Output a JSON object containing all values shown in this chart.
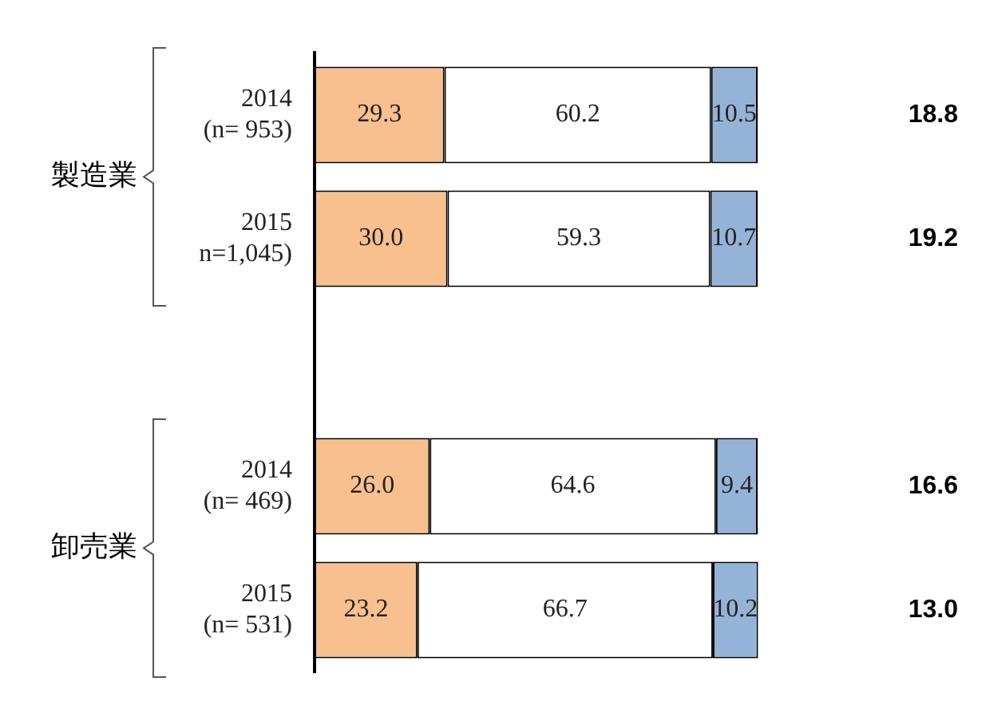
{
  "chart_data": {
    "type": "bar",
    "orientation": "horizontal",
    "stacked": true,
    "legend": false,
    "tick_labels": "y",
    "categories": [
      "2014\n(n= 953)",
      "2015\nn=1,045)",
      null,
      "2014\n(n= 469)",
      "2015\n(n= 531)"
    ],
    "series": [
      {
        "color": "#f8c08f",
        "values": [
          29.3,
          30.0,
          null,
          26.0,
          23.2
        ],
        "value_labels": [
          "29.3",
          "30.0",
          null,
          "26.0",
          "23.2"
        ]
      },
      {
        "color": "#ffffff",
        "values": [
          60.2,
          59.3,
          null,
          64.6,
          66.7
        ],
        "value_labels": [
          "60.2",
          "59.3",
          null,
          "64.6",
          "66.7"
        ]
      },
      {
        "color": "#95b3d7",
        "values": [
          10.5,
          10.7,
          null,
          9.4,
          10.2
        ],
        "value_labels": [
          "10.5",
          "10.7",
          null,
          "9.4",
          "10.2"
        ]
      }
    ],
    "annotations": [
      "製造業",
      "卸売業",
      "18.8",
      "19.2",
      "16.6",
      "13.0"
    ]
  }
}
